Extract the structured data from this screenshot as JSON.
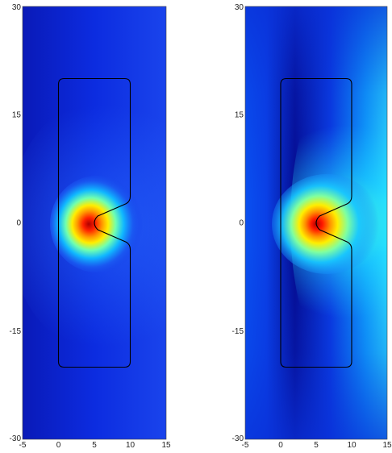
{
  "chart_data": [
    {
      "type": "heatmap",
      "title": "",
      "xlabel": "",
      "ylabel": "",
      "xlim": [
        -5,
        15
      ],
      "ylim": [
        -30,
        30
      ],
      "x_ticks": [
        -5,
        0,
        5,
        10,
        15
      ],
      "y_ticks": [
        30,
        15,
        0,
        -15,
        -30
      ],
      "x_tick_labels": [
        "-5",
        "0",
        "5",
        "10",
        "15"
      ],
      "y_tick_labels": [
        "30",
        "15",
        "0",
        "-15",
        "-30"
      ],
      "colormap": "jet",
      "hotspot": {
        "x": 4,
        "y": 0
      },
      "outline": [
        [
          0,
          20
        ],
        [
          10,
          20
        ],
        [
          10,
          3
        ],
        [
          5,
          0.6
        ],
        [
          5,
          -0.6
        ],
        [
          10,
          -3
        ],
        [
          10,
          -20
        ],
        [
          0,
          -20
        ]
      ],
      "outline_color": "#000000"
    },
    {
      "type": "heatmap",
      "title": "",
      "xlabel": "",
      "ylabel": "",
      "xlim": [
        -5,
        15
      ],
      "ylim": [
        -30,
        30
      ],
      "x_ticks": [
        -5,
        0,
        5,
        10,
        15
      ],
      "y_ticks": [
        30,
        15,
        0,
        -15,
        -30
      ],
      "x_tick_labels": [
        "-5",
        "0",
        "5",
        "10",
        "15"
      ],
      "y_tick_labels": [
        "30",
        "15",
        "0",
        "-15",
        "-30"
      ],
      "colormap": "jet",
      "hotspot": {
        "x": 4,
        "y": 0
      },
      "outline": [
        [
          0,
          20
        ],
        [
          10,
          20
        ],
        [
          10,
          3
        ],
        [
          5,
          0.6
        ],
        [
          5,
          -0.6
        ],
        [
          10,
          -3
        ],
        [
          10,
          -20
        ],
        [
          0,
          -20
        ]
      ],
      "outline_color": "#000000"
    }
  ]
}
